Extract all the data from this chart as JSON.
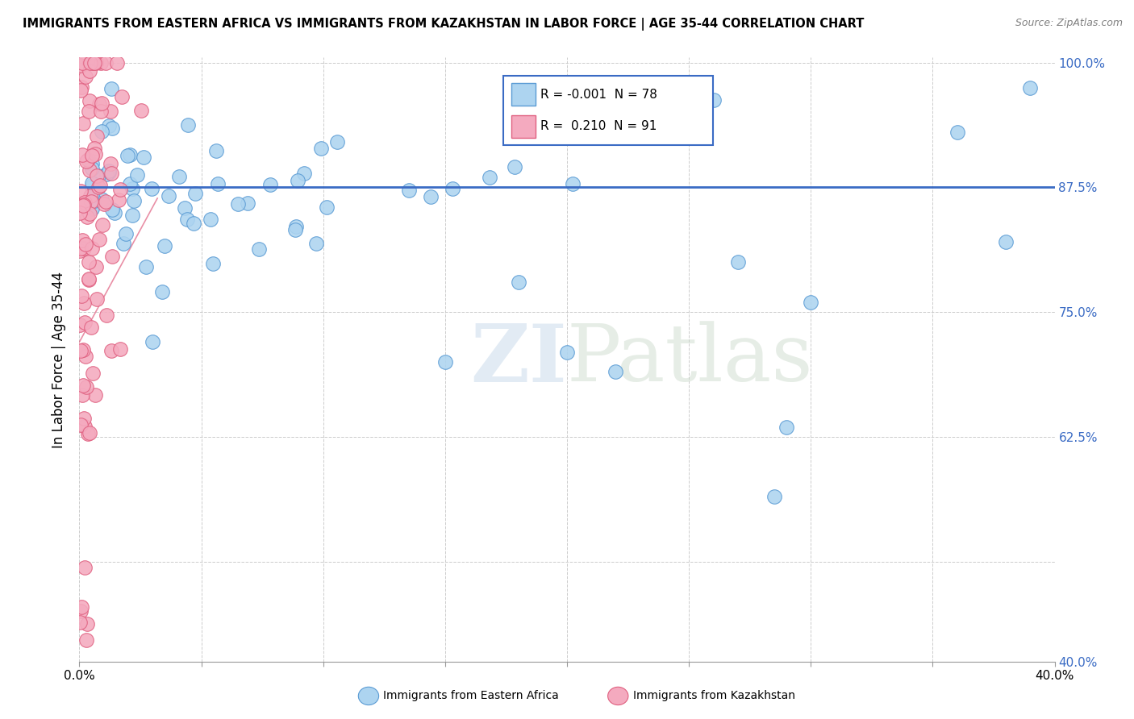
{
  "title": "IMMIGRANTS FROM EASTERN AFRICA VS IMMIGRANTS FROM KAZAKHSTAN IN LABOR FORCE | AGE 35-44 CORRELATION CHART",
  "source": "Source: ZipAtlas.com",
  "ylabel": "In Labor Force | Age 35-44",
  "xlim": [
    0.0,
    0.4
  ],
  "ylim": [
    0.4,
    1.005
  ],
  "xtick_pos": [
    0.0,
    0.05,
    0.1,
    0.15,
    0.2,
    0.25,
    0.3,
    0.35,
    0.4
  ],
  "xticklabels": [
    "0.0%",
    "",
    "",
    "",
    "",
    "",
    "",
    "",
    "40.0%"
  ],
  "ytick_positions": [
    0.4,
    0.5,
    0.625,
    0.75,
    0.875,
    1.0
  ],
  "yticklabels_right": [
    "40.0%",
    "",
    "62.5%",
    "75.0%",
    "87.5%",
    "100.0%"
  ],
  "hline_y": 0.875,
  "hline_color": "#3A6BC4",
  "watermark_text": "ZIPatlas",
  "legend_r1": "-0.001",
  "legend_n1": "78",
  "legend_r2": "0.210",
  "legend_n2": "91",
  "blue_color": "#ADD4F0",
  "pink_color": "#F4AABF",
  "blue_edge": "#5A9BD4",
  "pink_edge": "#E06080",
  "legend_box_edge": "#3A6BC4",
  "source_color": "#808080"
}
